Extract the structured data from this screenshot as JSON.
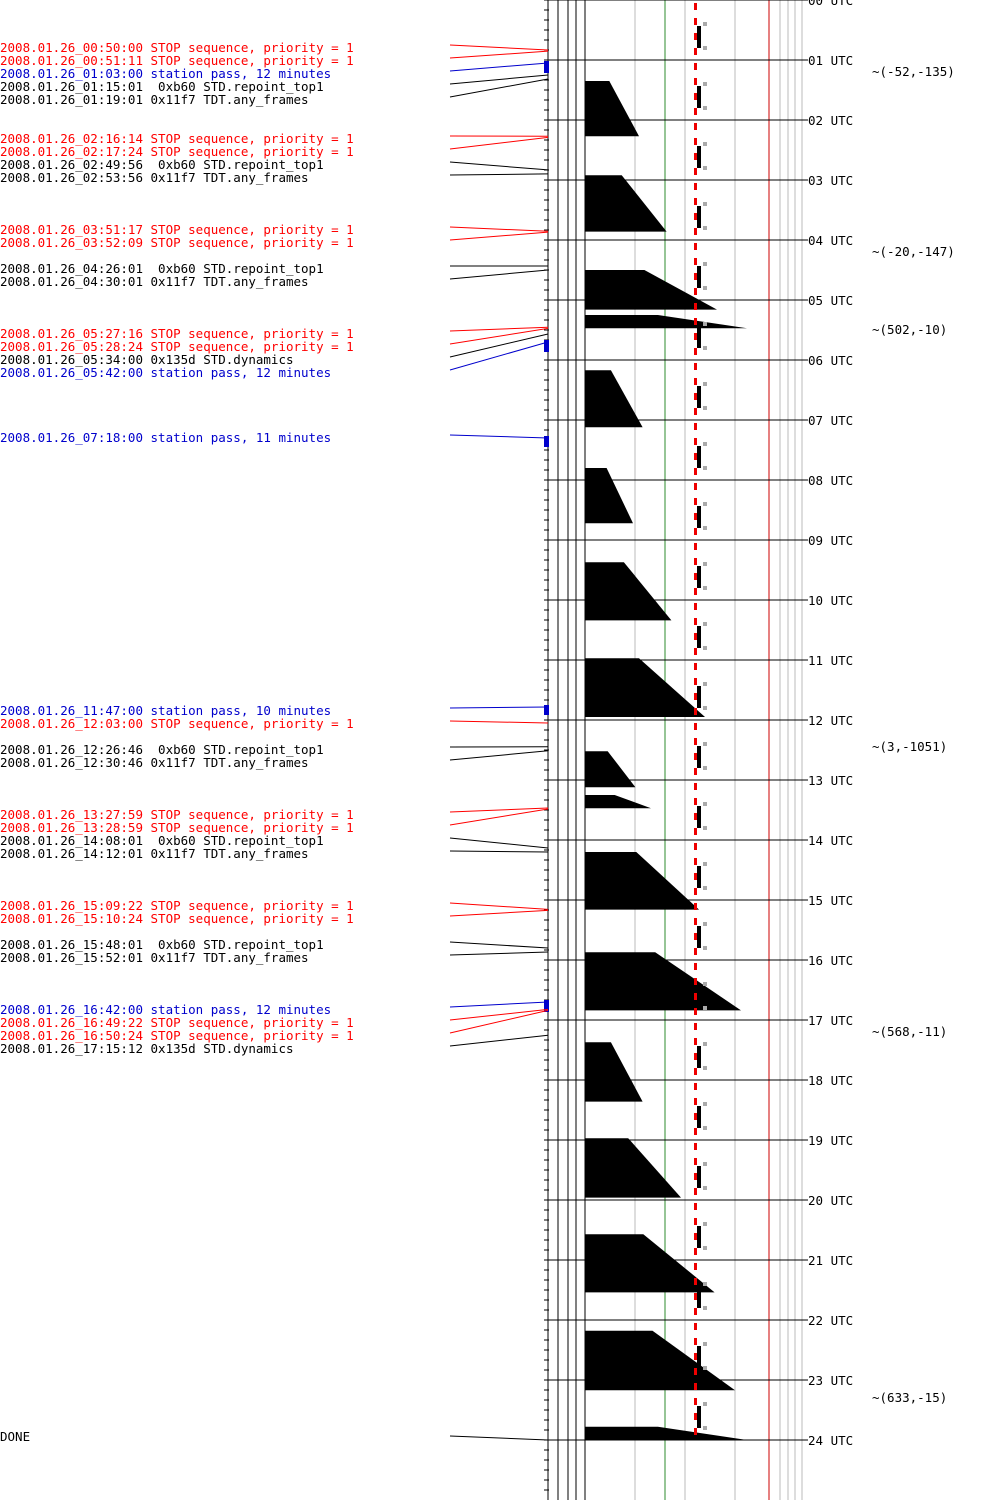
{
  "colors": {
    "stop": "#ff0000",
    "pass": "#0000cc",
    "command": "#000000",
    "background": "#ffffff"
  },
  "hours": [
    "00 UTC",
    "01 UTC",
    "02 UTC",
    "03 UTC",
    "04 UTC",
    "05 UTC",
    "06 UTC",
    "07 UTC",
    "08 UTC",
    "09 UTC",
    "10 UTC",
    "11 UTC",
    "12 UTC",
    "13 UTC",
    "14 UTC",
    "15 UTC",
    "16 UTC",
    "17 UTC",
    "18 UTC",
    "19 UTC",
    "20 UTC",
    "21 UTC",
    "22 UTC",
    "23 UTC",
    "24 UTC"
  ],
  "events": [
    {
      "text": "2008.01.26_00:50:00 STOP sequence, priority = 1",
      "kind": "stop",
      "t": 0.8333
    },
    {
      "text": "2008.01.26_00:51:11 STOP sequence, priority = 1",
      "kind": "stop",
      "t": 0.8531
    },
    {
      "text": "2008.01.26_01:03:00 station pass, 12 minutes",
      "kind": "pass",
      "t": 1.05,
      "dur": 0.2
    },
    {
      "text": "2008.01.26_01:15:01  0xb60 STD.repoint_top1",
      "kind": "command",
      "t": 1.2503
    },
    {
      "text": "2008.01.26_01:19:01 0x11f7 TDT.any_frames",
      "kind": "command",
      "t": 1.3169
    },
    {
      "text": "2008.01.26_02:16:14 STOP sequence, priority = 1",
      "kind": "stop",
      "t": 2.2706
    },
    {
      "text": "2008.01.26_02:17:24 STOP sequence, priority = 1",
      "kind": "stop",
      "t": 2.29
    },
    {
      "text": "2008.01.26_02:49:56  0xb60 STD.repoint_top1",
      "kind": "command",
      "t": 2.8322
    },
    {
      "text": "2008.01.26_02:53:56 0x11f7 TDT.any_frames",
      "kind": "command",
      "t": 2.8989
    },
    {
      "text": "2008.01.26_03:51:17 STOP sequence, priority = 1",
      "kind": "stop",
      "t": 3.8547
    },
    {
      "text": "2008.01.26_03:52:09 STOP sequence, priority = 1",
      "kind": "stop",
      "t": 3.8692
    },
    {
      "text": "2008.01.26_04:26:01  0xb60 STD.repoint_top1",
      "kind": "command",
      "t": 4.4336
    },
    {
      "text": "2008.01.26_04:30:01 0x11f7 TDT.any_frames",
      "kind": "command",
      "t": 4.5003
    },
    {
      "text": "2008.01.26_05:27:16 STOP sequence, priority = 1",
      "kind": "stop",
      "t": 5.4544
    },
    {
      "text": "2008.01.26_05:28:24 STOP sequence, priority = 1",
      "kind": "stop",
      "t": 5.4733
    },
    {
      "text": "2008.01.26_05:34:00 0x135d STD.dynamics",
      "kind": "command",
      "t": 5.5667
    },
    {
      "text": "2008.01.26_05:42:00 station pass, 12 minutes",
      "kind": "pass",
      "t": 5.7,
      "dur": 0.2
    },
    {
      "text": "2008.01.26_07:18:00 station pass, 11 minutes",
      "kind": "pass",
      "t": 7.3,
      "dur": 0.1833
    },
    {
      "text": "2008.01.26_11:47:00 station pass, 10 minutes",
      "kind": "pass",
      "t": 11.7833,
      "dur": 0.1667
    },
    {
      "text": "2008.01.26_12:03:00 STOP sequence, priority = 1",
      "kind": "stop",
      "t": 12.05
    },
    {
      "text": "2008.01.26_12:26:46  0xb60 STD.repoint_top1",
      "kind": "command",
      "t": 12.4461
    },
    {
      "text": "2008.01.26_12:30:46 0x11f7 TDT.any_frames",
      "kind": "command",
      "t": 12.5128
    },
    {
      "text": "2008.01.26_13:27:59 STOP sequence, priority = 1",
      "kind": "stop",
      "t": 13.4664
    },
    {
      "text": "2008.01.26_13:28:59 STOP sequence, priority = 1",
      "kind": "stop",
      "t": 13.4831
    },
    {
      "text": "2008.01.26_14:08:01  0xb60 STD.repoint_top1",
      "kind": "command",
      "t": 14.1336
    },
    {
      "text": "2008.01.26_14:12:01 0x11f7 TDT.any_frames",
      "kind": "command",
      "t": 14.2003
    },
    {
      "text": "2008.01.26_15:09:22 STOP sequence, priority = 1",
      "kind": "stop",
      "t": 15.1561
    },
    {
      "text": "2008.01.26_15:10:24 STOP sequence, priority = 1",
      "kind": "stop",
      "t": 15.1733
    },
    {
      "text": "2008.01.26_15:48:01  0xb60 STD.repoint_top1",
      "kind": "command",
      "t": 15.8003
    },
    {
      "text": "2008.01.26_15:52:01 0x11f7 TDT.any_frames",
      "kind": "command",
      "t": 15.8669
    },
    {
      "text": "2008.01.26_16:42:00 station pass, 12 minutes",
      "kind": "pass",
      "t": 16.7,
      "dur": 0.2
    },
    {
      "text": "2008.01.26_16:49:22 STOP sequence, priority = 1",
      "kind": "stop",
      "t": 16.8228
    },
    {
      "text": "2008.01.26_16:50:24 STOP sequence, priority = 1",
      "kind": "stop",
      "t": 16.84
    },
    {
      "text": "2008.01.26_17:15:12 0x135d STD.dynamics",
      "kind": "command",
      "t": 17.2533
    }
  ],
  "done_label": "DONE",
  "done_t": 24,
  "coordinates": [
    {
      "text": "(-52,-135)",
      "t": 1.2
    },
    {
      "text": "(-20,-147)",
      "t": 4.2
    },
    {
      "text": "(502,-10)",
      "t": 5.5
    },
    {
      "text": "(3,-1051)",
      "t": 12.45
    },
    {
      "text": "(568,-11)",
      "t": 17.2
    },
    {
      "text": "(633,-15)",
      "t": 23.3
    }
  ],
  "orbit_blocks": [
    {
      "start": 1.35,
      "end": 2.27,
      "width": 0.45
    },
    {
      "start": 2.92,
      "end": 3.86,
      "width": 0.68
    },
    {
      "start": 4.5,
      "end": 5.16,
      "width": 1.1
    },
    {
      "start": 5.25,
      "end": 5.47,
      "width": 1.35
    },
    {
      "start": 6.17,
      "end": 7.12,
      "width": 0.48
    },
    {
      "start": 7.8,
      "end": 8.72,
      "width": 0.4
    },
    {
      "start": 9.37,
      "end": 10.34,
      "width": 0.72
    },
    {
      "start": 10.97,
      "end": 11.95,
      "width": 1.0
    },
    {
      "start": 12.52,
      "end": 13.12,
      "width": 0.42
    },
    {
      "start": 13.25,
      "end": 13.47,
      "width": 0.55
    },
    {
      "start": 14.2,
      "end": 15.16,
      "width": 0.95
    },
    {
      "start": 15.87,
      "end": 16.84,
      "width": 1.3
    },
    {
      "start": 17.37,
      "end": 18.36,
      "width": 0.48
    },
    {
      "start": 18.97,
      "end": 19.96,
      "width": 0.8
    },
    {
      "start": 20.57,
      "end": 21.54,
      "width": 1.08
    },
    {
      "start": 22.18,
      "end": 23.17,
      "width": 1.25
    },
    {
      "start": 23.78,
      "end": 24.0,
      "width": 1.35
    }
  ]
}
